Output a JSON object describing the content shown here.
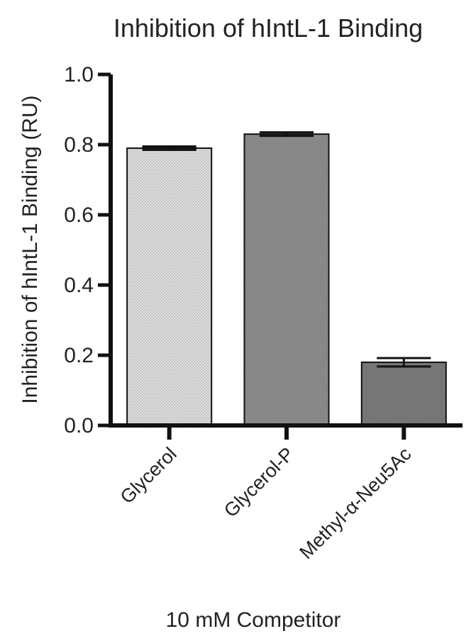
{
  "chart_data": {
    "type": "bar",
    "title": "Inhibition of hIntL-1 Binding",
    "ylabel": "Inhibition of hIntL-1 Binding (RU)",
    "xlabel": "10 mM Competitor",
    "categories": [
      "Glycerol",
      "Glycerol-P",
      "Methyl-α-Neu5Ac"
    ],
    "values": [
      0.79,
      0.83,
      0.18
    ],
    "errors": [
      0.005,
      0.005,
      0.012
    ],
    "ylim": [
      0.0,
      1.0
    ],
    "yticks": [
      "0.0",
      "0.2",
      "0.4",
      "0.6",
      "0.8",
      "1.0"
    ],
    "bar_colors": [
      "#d9d9d9",
      "#8c8c8c",
      "#7a7a7a"
    ],
    "grid": false,
    "legend": "none"
  }
}
